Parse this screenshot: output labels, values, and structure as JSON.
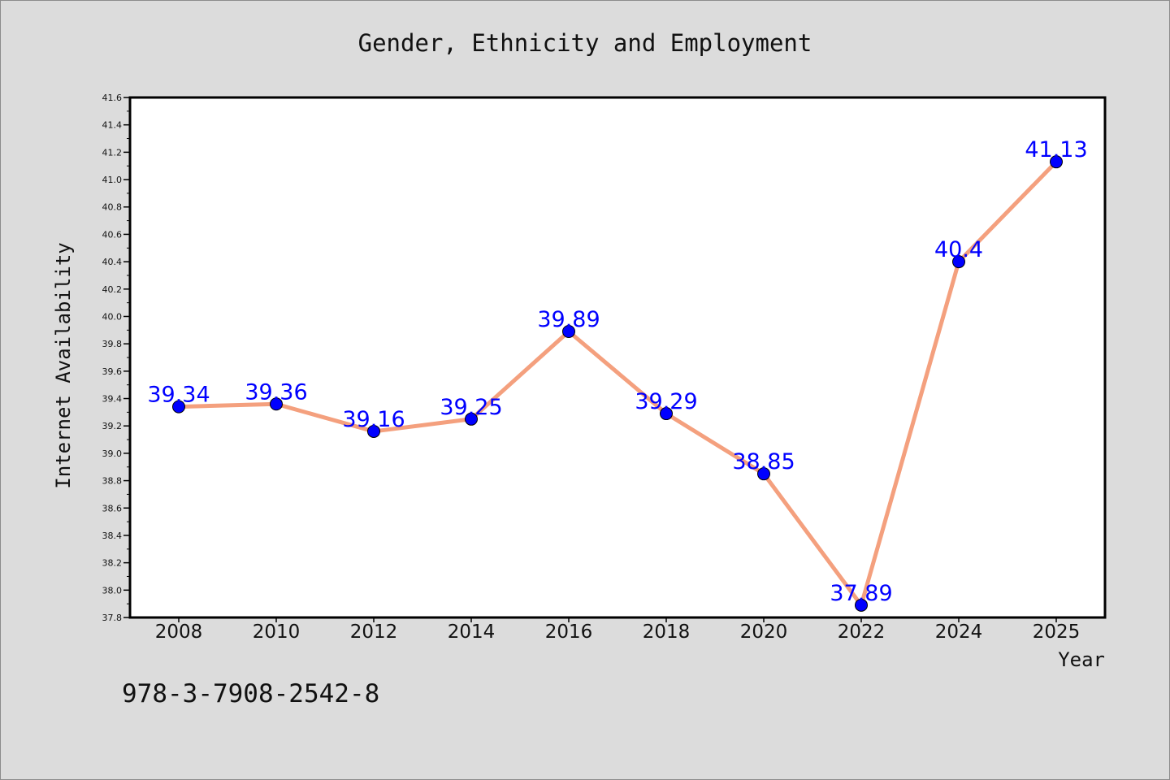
{
  "chart_data": {
    "type": "line",
    "title": "Gender, Ethnicity and Employment",
    "xlabel": "Year",
    "ylabel": "Internet Availability",
    "categories": [
      "2008",
      "2010",
      "2012",
      "2014",
      "2016",
      "2018",
      "2020",
      "2022",
      "2024",
      "2025"
    ],
    "values": [
      39.34,
      39.36,
      39.16,
      39.25,
      39.89,
      39.29,
      38.85,
      37.89,
      40.4,
      41.13
    ],
    "data_labels": [
      "39.34",
      "39.36",
      "39.16",
      "39.25",
      "39.89",
      "39.29",
      "38.85",
      "37.89",
      "40.4",
      "41.13"
    ],
    "ylim": [
      37.8,
      41.6
    ],
    "y_ticks": [
      "37.8",
      "38.0",
      "38.2",
      "38.4",
      "38.6",
      "38.8",
      "39.0",
      "39.2",
      "39.4",
      "39.6",
      "39.8",
      "40.0",
      "40.2",
      "40.4",
      "40.6",
      "40.8",
      "41.0",
      "41.2",
      "41.4",
      "41.6"
    ],
    "grid": false,
    "line_color": "#f4a07e",
    "marker_color": "#0000ff",
    "label_color": "#0000ff",
    "background": "#dcdcdc",
    "plot_background": "#ffffff"
  },
  "footer": {
    "isbn": "978-3-7908-2542-8"
  }
}
